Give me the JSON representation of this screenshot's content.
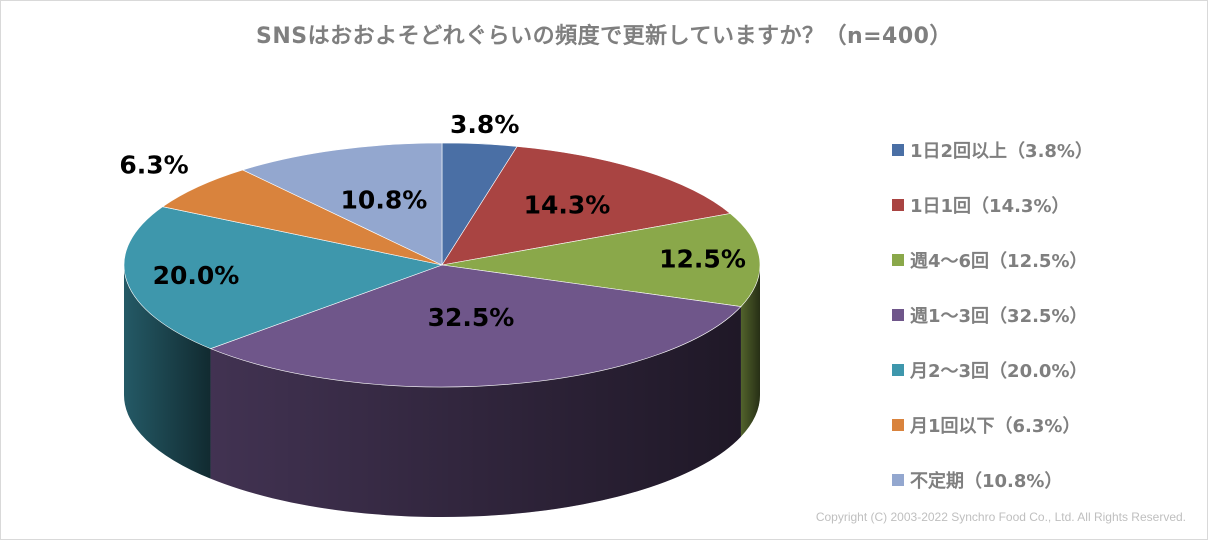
{
  "chart_data": {
    "type": "pie",
    "title": "SNSはおおよそどれぐらいの頻度で更新していますか？（n=400）",
    "categories": [
      "1日2回以上",
      "1日1回",
      "週4～6回",
      "週1～3回",
      "月2～3回",
      "月1回以下",
      "不定期"
    ],
    "values": [
      3.8,
      14.3,
      12.5,
      32.5,
      20.0,
      6.3,
      10.8
    ],
    "data_labels": [
      "3.8%",
      "14.3%",
      "12.5%",
      "32.5%",
      "20.0%",
      "6.3%",
      "10.8%"
    ],
    "legend_labels": [
      "1日2回以上（3.8%）",
      "1日1回（14.3%）",
      "週4～6回（12.5%）",
      "週1～3回（32.5%）",
      "月2～3回（20.0%）",
      "月1回以下（6.3%）",
      "不定期（10.8%）"
    ],
    "colors": [
      "#4a6fa5",
      "#a94442",
      "#8aa84a",
      "#6f568a",
      "#3e97ac",
      "#d9833d",
      "#93a7cf"
    ],
    "legend_position": "right",
    "style": "3d-pie"
  },
  "copyright": "Copyright (C) 2003-2022   Synchro Food Co., Ltd. All Rights Reserved."
}
